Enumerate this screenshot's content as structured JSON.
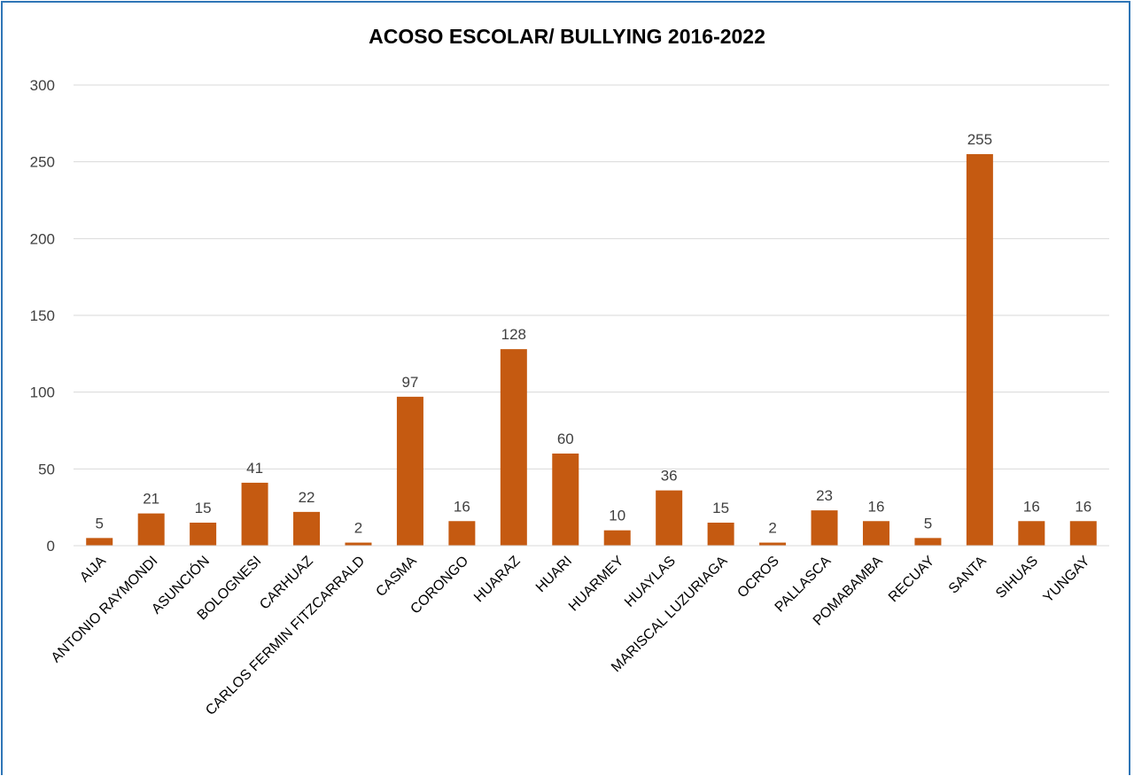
{
  "chart_data": {
    "type": "bar",
    "title": "ACOSO ESCOLAR/ BULLYING 2016-2022",
    "xlabel": "",
    "ylabel": "",
    "ylim": [
      0,
      300
    ],
    "yticks": [
      "0",
      "50",
      "100",
      "150",
      "200",
      "250",
      "300"
    ],
    "grid": true,
    "legend": "none",
    "bar_color": "#c55a11",
    "frame_color": "#2e75b6",
    "categories": [
      "AIJA",
      "ANTONIO RAYMONDI",
      "ASUNCIÓN",
      "BOLOGNESI",
      "CARHUAZ",
      "CARLOS FERMIN FITZCARRALD",
      "CASMA",
      "CORONGO",
      "HUARAZ",
      "HUARI",
      "HUARMEY",
      "HUAYLAS",
      "MARISCAL LUZURIAGA",
      "OCROS",
      "PALLASCA",
      "POMABAMBA",
      "RECUAY",
      "SANTA",
      "SIHUAS",
      "YUNGAY"
    ],
    "values": [
      5,
      21,
      15,
      41,
      22,
      2,
      97,
      16,
      128,
      60,
      10,
      36,
      15,
      2,
      23,
      16,
      5,
      255,
      16,
      16
    ]
  }
}
